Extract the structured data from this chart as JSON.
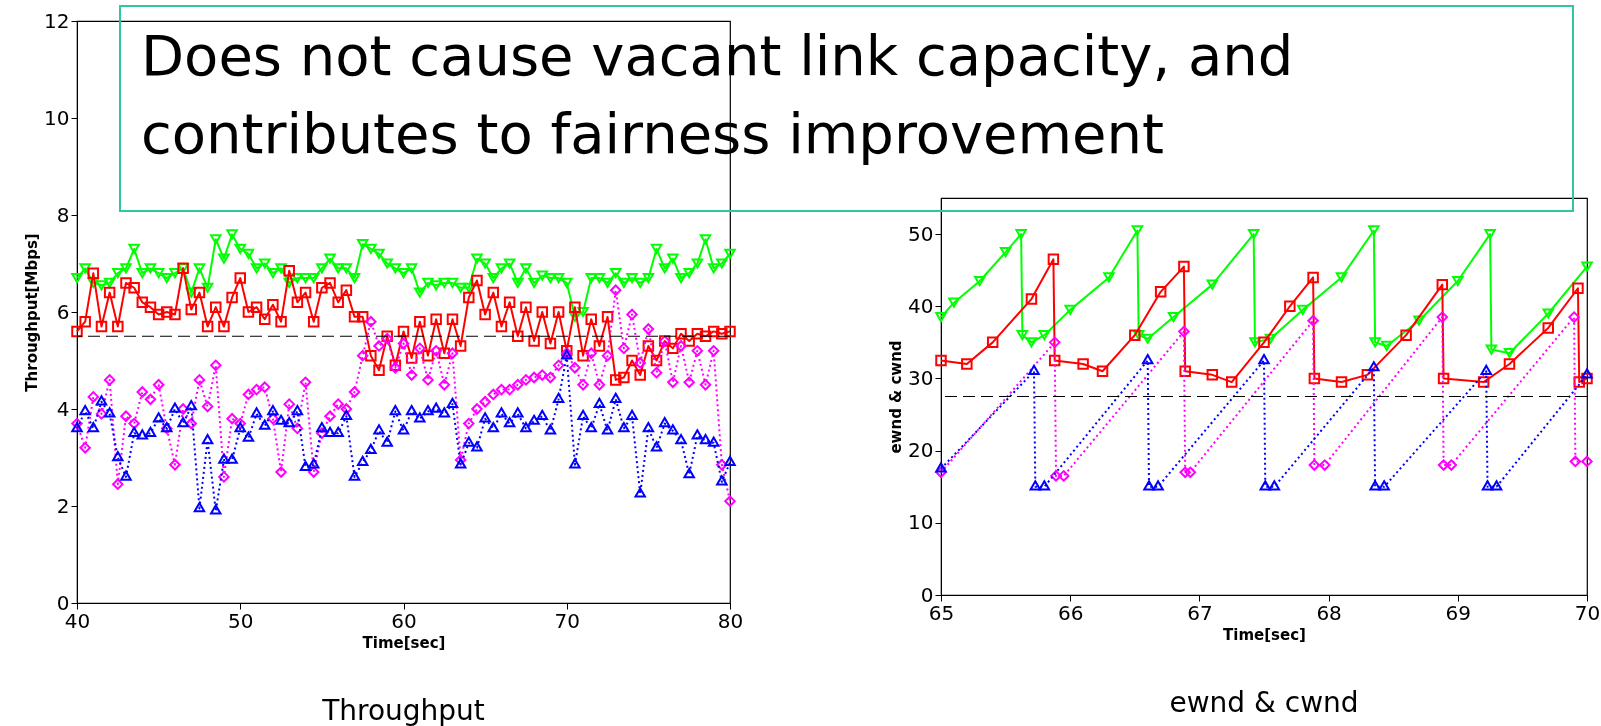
{
  "chart_data": [
    {
      "type": "line",
      "title": "Throughput",
      "xlabel": "Time[sec]",
      "ylabel": "Throughput[Mbps]",
      "xlim": [
        40,
        80
      ],
      "xticks": [
        40,
        50,
        60,
        70,
        80
      ],
      "ylim": [
        0,
        12
      ],
      "yticks": [
        0,
        2,
        4,
        6,
        8,
        10,
        12
      ],
      "annotations": [
        "Does not cause vacant link capacity, and contributes to fairness improvement"
      ],
      "x": [
        40,
        40.5,
        41,
        41.5,
        42,
        42.5,
        43,
        43.5,
        44,
        44.5,
        45,
        45.5,
        46,
        46.5,
        47,
        47.5,
        48,
        48.5,
        49,
        49.5,
        50,
        50.5,
        51,
        51.5,
        52,
        52.5,
        53,
        53.5,
        54,
        54.5,
        55,
        55.5,
        56,
        56.5,
        57,
        57.5,
        58,
        58.5,
        59,
        59.5,
        60,
        60.5,
        61,
        61.5,
        62,
        62.5,
        63,
        63.5,
        64,
        64.5,
        65,
        65.5,
        66,
        66.5,
        67,
        67.5,
        68,
        68.5,
        69,
        69.5,
        70,
        70.5,
        71,
        71.5,
        72,
        72.5,
        73,
        73.5,
        74,
        74.5,
        75,
        75.5,
        76,
        76.5,
        77,
        77.5,
        78,
        78.5,
        79,
        79.5,
        80
      ],
      "series": [
        {
          "color": "#00ff00",
          "marker": "triangle-down",
          "line_style": "solid",
          "values": [
            6.7,
            6.9,
            6.6,
            6.55,
            6.6,
            6.8,
            6.9,
            7.3,
            6.8,
            6.9,
            6.8,
            6.7,
            6.8,
            6.9,
            6.4,
            6.9,
            6.5,
            7.5,
            7.1,
            7.6,
            7.3,
            7.2,
            6.9,
            7.0,
            6.8,
            6.9,
            6.6,
            6.7,
            6.7,
            6.7,
            6.9,
            7.1,
            6.9,
            6.9,
            6.7,
            7.4,
            7.3,
            7.2,
            7.0,
            6.9,
            6.8,
            6.9,
            6.4,
            6.6,
            6.55,
            6.6,
            6.6,
            6.5,
            6.5,
            7.1,
            7.0,
            6.7,
            6.9,
            7.0,
            6.6,
            6.9,
            6.6,
            6.75,
            6.7,
            6.7,
            6.6,
            5.9,
            6.0,
            6.7,
            6.7,
            6.6,
            6.8,
            6.6,
            6.7,
            6.6,
            6.7,
            7.3,
            6.9,
            7.1,
            6.7,
            6.8,
            7.0,
            7.5,
            6.9,
            7.0,
            7.2
          ]
        },
        {
          "color": "#ff0000",
          "marker": "square",
          "line_style": "solid",
          "values": [
            5.6,
            5.8,
            6.8,
            5.7,
            6.4,
            5.7,
            6.6,
            6.5,
            6.2,
            6.1,
            5.95,
            6.0,
            5.95,
            6.9,
            6.05,
            6.4,
            5.7,
            6.1,
            5.7,
            6.3,
            6.7,
            6.0,
            6.1,
            5.85,
            6.15,
            5.8,
            6.85,
            6.2,
            6.4,
            5.8,
            6.5,
            6.6,
            6.2,
            6.45,
            5.9,
            5.9,
            5.1,
            4.8,
            5.5,
            4.9,
            5.6,
            5.05,
            5.8,
            5.1,
            5.85,
            5.15,
            5.85,
            5.3,
            6.3,
            6.65,
            5.95,
            6.4,
            5.7,
            6.2,
            5.5,
            6.1,
            5.4,
            6.0,
            5.35,
            6.0,
            5.2,
            6.1,
            5.1,
            5.85,
            5.3,
            5.9,
            4.6,
            4.65,
            5.0,
            4.7,
            5.3,
            5.0,
            5.4,
            5.25,
            5.55,
            5.4,
            5.55,
            5.5,
            5.6,
            5.55,
            5.6
          ]
        },
        {
          "color": "#ff00ff",
          "marker": "diamond",
          "line_style": "dotted",
          "values": [
            3.7,
            3.2,
            4.25,
            3.9,
            4.6,
            2.45,
            3.85,
            3.7,
            4.35,
            4.2,
            4.5,
            3.6,
            2.85,
            4.0,
            3.7,
            4.6,
            4.05,
            4.9,
            2.6,
            3.8,
            3.7,
            4.3,
            4.4,
            4.45,
            3.8,
            2.7,
            4.1,
            3.6,
            4.55,
            2.7,
            3.5,
            3.85,
            4.1,
            4.0,
            4.35,
            5.1,
            5.8,
            5.3,
            5.45,
            4.85,
            5.35,
            4.7,
            5.25,
            4.6,
            5.2,
            4.5,
            5.15,
            2.95,
            3.7,
            4.0,
            4.15,
            4.3,
            4.4,
            4.4,
            4.5,
            4.6,
            4.65,
            4.7,
            4.65,
            4.9,
            5.15,
            4.85,
            4.5,
            5.15,
            4.5,
            5.1,
            6.45,
            5.25,
            5.95,
            4.95,
            5.65,
            4.75,
            5.4,
            4.55,
            5.3,
            4.55,
            5.2,
            4.5,
            5.2,
            2.85,
            2.1
          ]
        },
        {
          "color": "#0000ff",
          "marker": "triangle",
          "line_style": "dotted",
          "values": [
            3.6,
            3.95,
            3.6,
            4.15,
            3.9,
            3.0,
            2.6,
            3.5,
            3.45,
            3.5,
            3.8,
            3.6,
            4.0,
            3.7,
            4.05,
            1.95,
            3.35,
            1.9,
            2.95,
            2.95,
            3.6,
            3.4,
            3.9,
            3.65,
            3.95,
            3.75,
            3.7,
            3.95,
            2.8,
            2.85,
            3.6,
            3.5,
            3.5,
            3.85,
            2.6,
            2.9,
            3.15,
            3.55,
            3.3,
            3.95,
            3.55,
            3.95,
            3.8,
            3.95,
            4.0,
            3.9,
            4.1,
            2.85,
            3.3,
            3.2,
            3.8,
            3.6,
            3.9,
            3.7,
            3.9,
            3.6,
            3.75,
            3.85,
            3.55,
            4.2,
            5.1,
            2.85,
            3.85,
            3.6,
            4.1,
            3.55,
            4.2,
            3.6,
            3.85,
            2.25,
            3.6,
            3.2,
            3.7,
            3.55,
            3.35,
            2.65,
            3.45,
            3.35,
            3.3,
            2.5,
            2.9
          ]
        }
      ],
      "ref_lines": [
        {
          "axis": "y",
          "value": 5.5,
          "color": "#000000",
          "line_style": "dashed"
        }
      ]
    },
    {
      "type": "line",
      "title": "ewnd & cwnd",
      "xlabel": "Time[sec]",
      "ylabel": "ewnd & cwnd",
      "xlim": [
        65,
        70
      ],
      "xticks": [
        65,
        66,
        67,
        68,
        69,
        70
      ],
      "ylim": [
        0,
        55
      ],
      "yticks": [
        0,
        10,
        20,
        30,
        40,
        50
      ],
      "series": [
        {
          "color": "#00ff00",
          "marker": "triangle-down",
          "line_style": "solid",
          "x": [
            65,
            65.1,
            65.3,
            65.5,
            65.62,
            65.63,
            65.7,
            65.8,
            66,
            66.3,
            66.52,
            66.53,
            66.6,
            66.8,
            67.1,
            67.42,
            67.43,
            67.55,
            67.8,
            68.1,
            68.35,
            68.36,
            68.45,
            68.7,
            69,
            69.25,
            69.26,
            69.4,
            69.7,
            70
          ],
          "values": [
            38.5,
            40.5,
            43.5,
            47.5,
            50,
            36,
            35,
            36,
            39.5,
            44,
            50.5,
            36,
            35.5,
            38.5,
            43,
            50,
            35,
            35.5,
            39.5,
            44,
            50.5,
            35,
            34.5,
            38,
            43.5,
            50,
            34,
            33.5,
            39,
            45.5
          ]
        },
        {
          "color": "#ff0000",
          "marker": "square",
          "line_style": "solid",
          "x": [
            65,
            65.2,
            65.4,
            65.7,
            65.87,
            65.88,
            66.1,
            66.25,
            66.5,
            66.7,
            66.88,
            66.89,
            67.1,
            67.25,
            67.5,
            67.7,
            67.88,
            67.89,
            68.1,
            68.3,
            68.6,
            68.88,
            68.89,
            69.2,
            69.4,
            69.7,
            69.93,
            69.94,
            70
          ],
          "values": [
            32.5,
            32,
            35,
            41,
            46.5,
            32.5,
            32,
            31,
            36,
            42,
            45.5,
            31,
            30.5,
            29.5,
            35,
            40,
            44,
            30,
            29.5,
            30.5,
            36,
            43,
            30,
            29.5,
            32,
            37,
            42.5,
            29.5,
            30
          ]
        },
        {
          "color": "#ff00ff",
          "marker": "diamond",
          "line_style": "dotted",
          "x": [
            65,
            65.88,
            65.89,
            65.95,
            66.88,
            66.89,
            66.93,
            67.88,
            67.89,
            67.97,
            68.88,
            68.89,
            68.95,
            69.9,
            69.91,
            70
          ],
          "values": [
            17,
            35,
            16.5,
            16.5,
            36.5,
            17,
            17,
            38,
            18,
            18,
            38.5,
            18,
            18,
            38.5,
            18.5,
            18.5
          ]
        },
        {
          "color": "#0000ff",
          "marker": "triangle",
          "line_style": "dotted",
          "x": [
            65,
            65.72,
            65.73,
            65.8,
            66.6,
            66.61,
            66.68,
            67.5,
            67.51,
            67.58,
            68.35,
            68.36,
            68.43,
            69.22,
            69.23,
            69.3,
            70
          ],
          "values": [
            17.5,
            31,
            15,
            15,
            32.5,
            15,
            15,
            32.5,
            15,
            15,
            31.5,
            15,
            15,
            31,
            15,
            15,
            30.5
          ]
        }
      ],
      "ref_lines": [
        {
          "axis": "y",
          "value": 27.5,
          "color": "#000000",
          "line_style": "dashed"
        }
      ]
    }
  ]
}
